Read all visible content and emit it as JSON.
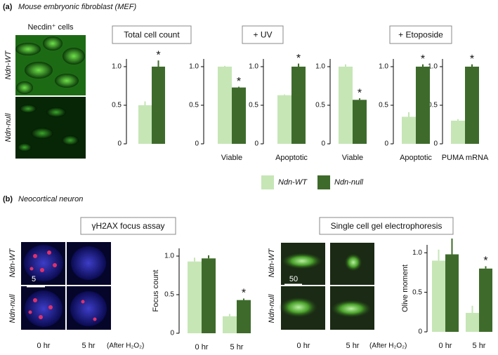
{
  "panels": [
    {
      "label": "(a)",
      "title": "Mouse embryonic fibroblast (MEF)"
    },
    {
      "label": "(b)",
      "title": "Neocortical neuron"
    }
  ],
  "mef_images": {
    "title": "Necdin⁺ cells",
    "rows": [
      "Ndn-WT",
      "Ndn-null"
    ]
  },
  "neuron_images": [
    {
      "rows": [
        "Ndn-WT",
        "Ndn-null"
      ],
      "scale": "5",
      "columns": [
        "0 hr",
        "5 hr"
      ],
      "note": "(After H₂O₂)"
    },
    {
      "rows": [
        "Ndn-WT",
        "Ndn-null"
      ],
      "scale": "50",
      "columns": [
        "0 hr",
        "5 hr"
      ],
      "note": "(After H₂O₂)"
    }
  ],
  "chart_data": [
    {
      "type": "bar",
      "title": "Total cell count",
      "categories": [
        null
      ],
      "ylim": [
        0,
        1.1
      ],
      "yticks": [
        0,
        0.5,
        {
          "value": 1,
          "label": "1.0"
        }
      ],
      "series": [
        {
          "name": "Ndn-WT",
          "color": "#c6e6b6",
          "values": [
            0.5
          ],
          "errors": [
            0.05
          ]
        },
        {
          "name": "Ndn-null",
          "color": "#3e6b2b",
          "values": [
            1.0
          ],
          "errors": [
            0.08
          ]
        }
      ],
      "annotations": [
        {
          "text": "*",
          "category": 0
        }
      ]
    },
    {
      "type": "bar",
      "title": "+ UV",
      "categories": [
        "Viable",
        "Apoptotic"
      ],
      "ylim": [
        0,
        1.1
      ],
      "yticks": [
        0,
        0.5,
        {
          "value": 1,
          "label": "1.0"
        }
      ],
      "series": [
        {
          "name": "Ndn-WT",
          "color": "#c6e6b6",
          "values": [
            1.0,
            0.63
          ],
          "errors": [
            0.01,
            0.01
          ]
        },
        {
          "name": "Ndn-null",
          "color": "#3e6b2b",
          "values": [
            0.73,
            1.0
          ],
          "errors": [
            0.01,
            0.04
          ]
        }
      ],
      "annotations": [
        {
          "text": "*",
          "category": 0
        },
        {
          "text": "*",
          "category": 1
        }
      ]
    },
    {
      "type": "bar",
      "title": "+ Etoposide",
      "categories": [
        "Viable",
        "Apoptotic",
        "PUMA mRNA"
      ],
      "ylim": [
        0,
        1.1
      ],
      "yticks": [
        0,
        0.5,
        {
          "value": 1,
          "label": "1.0"
        }
      ],
      "series": [
        {
          "name": "Ndn-WT",
          "color": "#c6e6b6",
          "values": [
            1.0,
            0.35,
            0.3
          ],
          "errors": [
            0.03,
            0.06,
            0.02
          ]
        },
        {
          "name": "Ndn-null",
          "color": "#3e6b2b",
          "values": [
            0.57,
            1.0,
            1.0
          ],
          "errors": [
            0.02,
            0.03,
            0.03
          ]
        }
      ],
      "annotations": [
        {
          "text": "*",
          "category": 0
        },
        {
          "text": "*",
          "category": 1
        },
        {
          "text": "*",
          "category": 2
        }
      ]
    },
    {
      "type": "bar",
      "title": "γH2AX focus assay",
      "ylabel": "Focus count",
      "categories": [
        "0 hr",
        "5 hr"
      ],
      "ylim": [
        0,
        1.1
      ],
      "yticks": [
        0,
        0.5,
        {
          "value": 1,
          "label": "1.0"
        }
      ],
      "series": [
        {
          "name": "Ndn-WT",
          "color": "#c6e6b6",
          "values": [
            0.93,
            0.22
          ],
          "errors": [
            0.05,
            0.03
          ]
        },
        {
          "name": "Ndn-null",
          "color": "#3e6b2b",
          "values": [
            0.97,
            0.43
          ],
          "errors": [
            0.04,
            0.02
          ]
        }
      ],
      "annotations": [
        {
          "text": "*",
          "category": 1
        }
      ]
    },
    {
      "type": "bar",
      "title": "Single cell gel electrophoresis",
      "ylabel": "Olive moment",
      "categories": [
        "0 hr",
        "5 hr"
      ],
      "ylim": [
        0,
        1.1
      ],
      "yticks": [
        0,
        0.5,
        {
          "value": 1,
          "label": "1.0"
        }
      ],
      "series": [
        {
          "name": "Ndn-WT",
          "color": "#c6e6b6",
          "values": [
            0.9,
            0.24
          ],
          "errors": [
            0.14,
            0.09
          ]
        },
        {
          "name": "Ndn-null",
          "color": "#3e6b2b",
          "values": [
            0.98,
            0.8
          ],
          "errors": [
            0.2,
            0.03
          ]
        }
      ],
      "annotations": [
        {
          "text": "*",
          "category": 1
        }
      ]
    }
  ]
}
